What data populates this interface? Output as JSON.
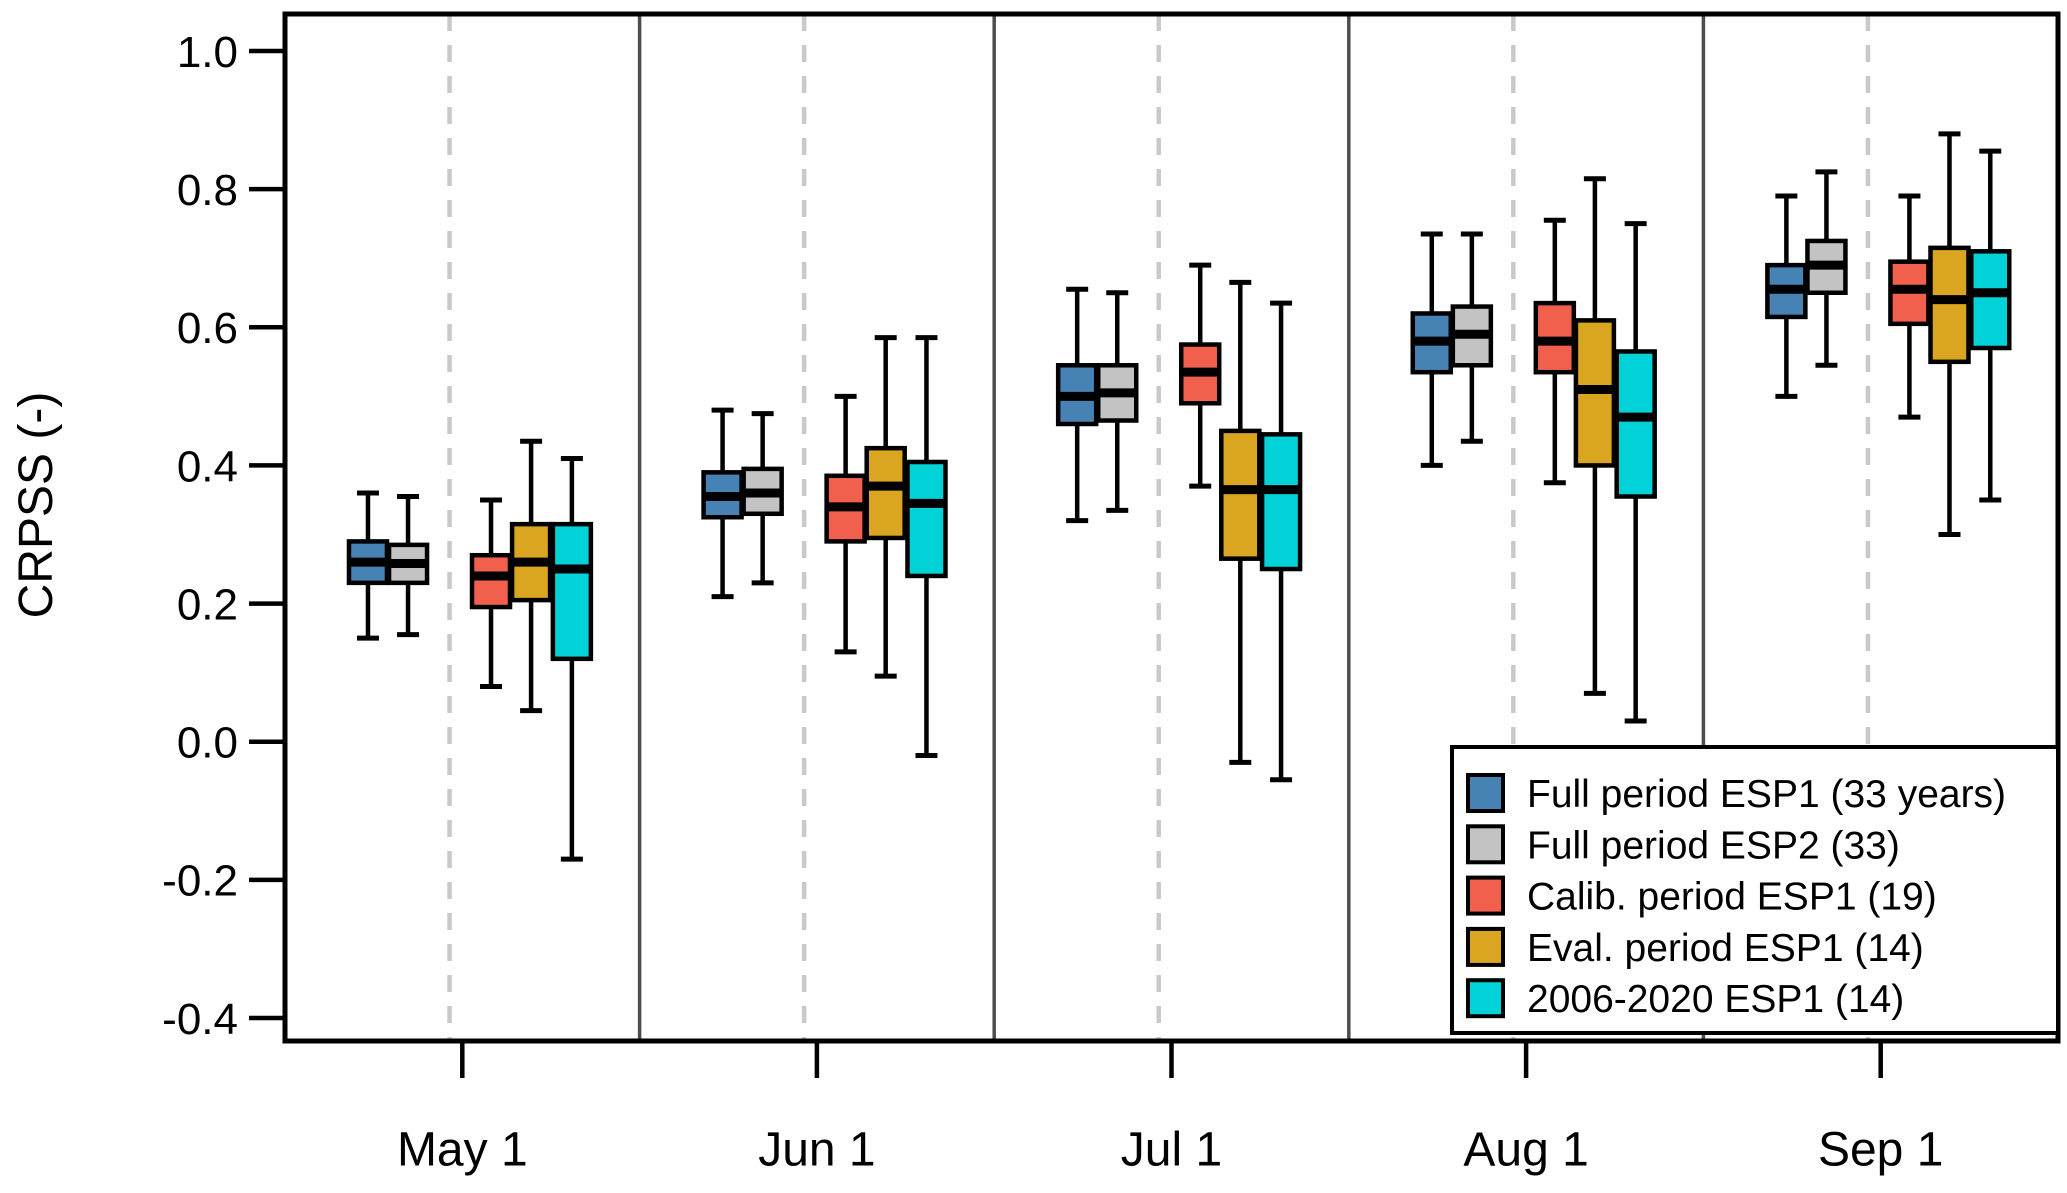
{
  "figure": {
    "background": "#ffffff",
    "frame_color": "#000000",
    "separator_color": "#4d4d4d",
    "dashed_grid_color": "#c9c9c9"
  },
  "chart_data": {
    "type": "boxplot",
    "title": "",
    "xlabel": "",
    "ylabel": "CRPSS (-)",
    "ylim": [
      -0.47,
      1.06
    ],
    "yticks": [
      1.0,
      0.8,
      0.6,
      0.4,
      0.2,
      0.0,
      -0.2,
      -0.4
    ],
    "ytick_labels": [
      "1.0",
      "0.8",
      "0.6",
      "0.4",
      "0.2",
      "0.0",
      "-0.2",
      "-0.4"
    ],
    "categories": [
      "May 1",
      "Jun 1",
      "Jul 1",
      "Aug 1",
      "Sep 1"
    ],
    "grid": "vertical dashed line at each month-group center; solid separators between month panels",
    "legend_position": "bottom-right inside plot",
    "box_stats_format": [
      "whisker_low",
      "q1",
      "median",
      "q3",
      "whisker_high"
    ],
    "series": [
      {
        "name": "Full period ESP1 (33 years)",
        "color": "#4682B4",
        "boxes": [
          [
            0.15,
            0.23,
            0.26,
            0.29,
            0.36
          ],
          [
            0.21,
            0.325,
            0.355,
            0.39,
            0.48
          ],
          [
            0.32,
            0.46,
            0.5,
            0.545,
            0.655
          ],
          [
            0.4,
            0.535,
            0.58,
            0.62,
            0.735
          ],
          [
            0.5,
            0.615,
            0.655,
            0.69,
            0.79
          ]
        ]
      },
      {
        "name": "Full period ESP2 (33)",
        "color": "#C3C3C3",
        "boxes": [
          [
            0.155,
            0.23,
            0.258,
            0.285,
            0.355
          ],
          [
            0.23,
            0.33,
            0.36,
            0.395,
            0.475
          ],
          [
            0.335,
            0.465,
            0.505,
            0.545,
            0.65
          ],
          [
            0.435,
            0.545,
            0.59,
            0.63,
            0.735
          ],
          [
            0.545,
            0.65,
            0.69,
            0.725,
            0.825
          ]
        ]
      },
      {
        "name": "Calib. period ESP1 (19)",
        "color": "#F0604D",
        "boxes": [
          [
            0.08,
            0.195,
            0.24,
            0.27,
            0.35
          ],
          [
            0.13,
            0.29,
            0.34,
            0.385,
            0.5
          ],
          [
            0.37,
            0.49,
            0.535,
            0.575,
            0.69
          ],
          [
            0.375,
            0.535,
            0.58,
            0.635,
            0.755
          ],
          [
            0.47,
            0.605,
            0.655,
            0.695,
            0.79
          ]
        ]
      },
      {
        "name": "Eval. period ESP1 (14)",
        "color": "#DAA520",
        "boxes": [
          [
            0.045,
            0.205,
            0.26,
            0.315,
            0.435
          ],
          [
            0.095,
            0.295,
            0.37,
            0.425,
            0.585
          ],
          [
            -0.03,
            0.265,
            0.365,
            0.45,
            0.665
          ],
          [
            0.07,
            0.4,
            0.51,
            0.61,
            0.815
          ],
          [
            0.3,
            0.55,
            0.64,
            0.715,
            0.88
          ]
        ]
      },
      {
        "name": "2006-2020 ESP1 (14)",
        "color": "#00D2D8",
        "boxes": [
          [
            -0.17,
            0.12,
            0.25,
            0.315,
            0.41
          ],
          [
            -0.02,
            0.24,
            0.345,
            0.405,
            0.585
          ],
          [
            -0.055,
            0.25,
            0.365,
            0.445,
            0.635
          ],
          [
            0.03,
            0.355,
            0.47,
            0.565,
            0.75
          ],
          [
            0.35,
            0.57,
            0.65,
            0.71,
            0.855
          ]
        ]
      }
    ]
  }
}
